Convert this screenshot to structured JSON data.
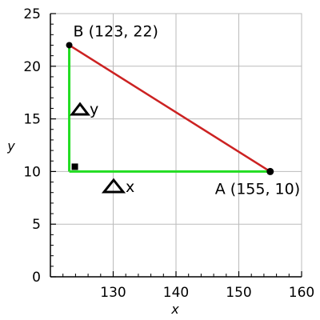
{
  "chart_data": {
    "type": "scatter",
    "title": "",
    "xlabel": "x",
    "ylabel": "y",
    "xlim": [
      120,
      160
    ],
    "ylim": [
      0,
      25
    ],
    "x_ticks": [
      130,
      140,
      150,
      160
    ],
    "y_ticks": [
      0,
      5,
      10,
      15,
      20,
      25
    ],
    "x_tick_labels": [
      "130",
      "140",
      "150",
      "160"
    ],
    "y_tick_labels": [
      "0",
      "5",
      "10",
      "15",
      "20",
      "25"
    ],
    "grid": true,
    "points": [
      {
        "label": "A (155, 10)",
        "x": 155,
        "y": 10
      },
      {
        "label": "B (123, 22)",
        "x": 123,
        "y": 22
      }
    ],
    "right_angle_vertex": {
      "x": 123,
      "y": 10
    },
    "delta_labels": {
      "x": "x",
      "y": "y"
    },
    "colors": {
      "hypotenuse": "#cc2222",
      "legs": "#22dd22",
      "grid": "#bbbbbb",
      "points": "#000000"
    }
  }
}
